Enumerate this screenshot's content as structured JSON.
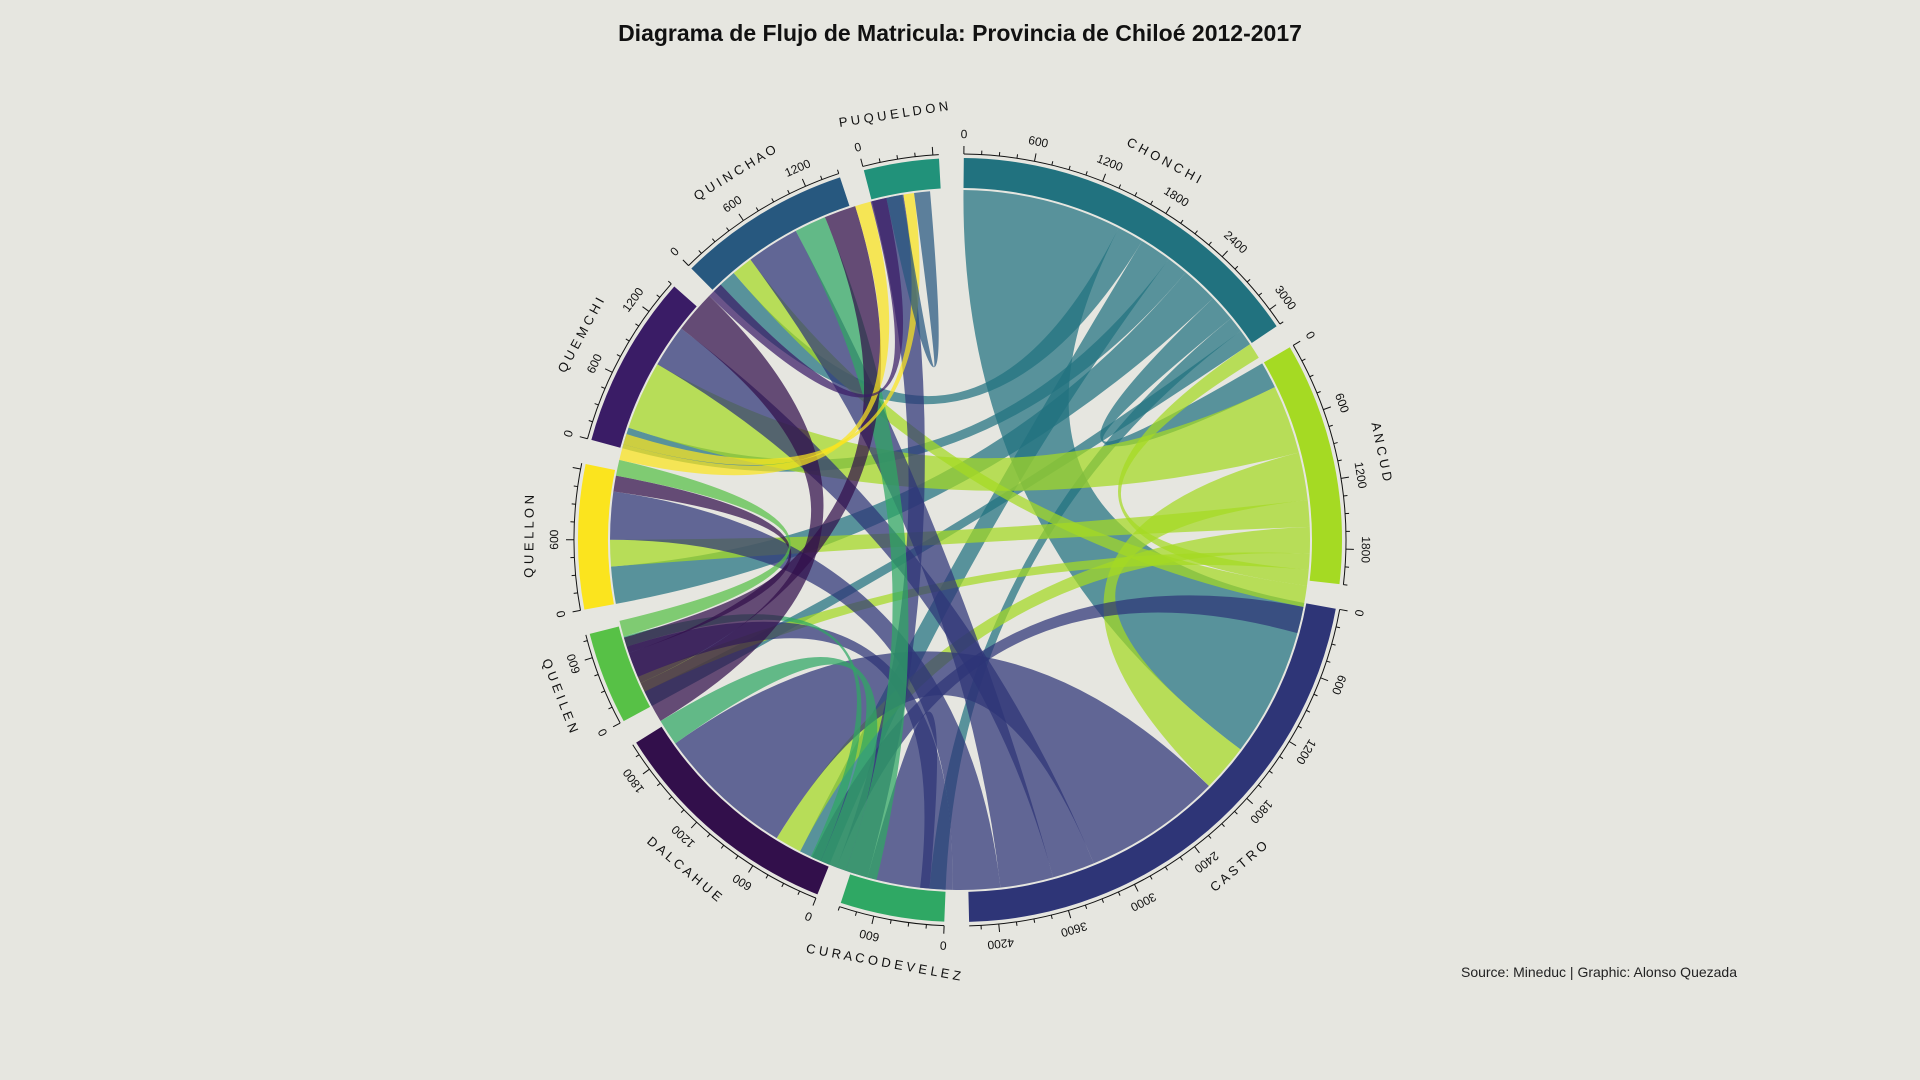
{
  "chart_data": {
    "type": "chord",
    "title": "Diagrama de Flujo de Matricula: Provincia de Chiloé 2012-2017",
    "caption": "Source: Mineduc | Graphic: Alonso Quezada",
    "sectors": [
      {
        "name": "CHONCHI",
        "label": "C H O N C H I",
        "total": 3150,
        "color": "#21727f",
        "ticks": [
          0,
          600,
          1200,
          1800,
          2400,
          3000
        ]
      },
      {
        "name": "ANCUD",
        "label": "A N C U D",
        "total": 2100,
        "color": "#a5da23",
        "ticks": [
          0,
          600,
          1200,
          1800
        ]
      },
      {
        "name": "CASTRO",
        "label": "C A S T R O",
        "total": 4450,
        "color": "#2e3577",
        "ticks": [
          0,
          600,
          1200,
          1800,
          2400,
          3000,
          3600,
          4200
        ]
      },
      {
        "name": "CURACO DE VELEZ",
        "label": "C U R A C O   D E   V E L E Z",
        "total": 900,
        "color": "#2fa864",
        "ticks": [
          0,
          600
        ]
      },
      {
        "name": "DALCAHUE",
        "label": "D A L C A H U E",
        "total": 2050,
        "color": "#320f4b",
        "ticks": [
          0,
          600,
          1200,
          1800
        ]
      },
      {
        "name": "QUEILEN",
        "label": "Q U E I L E N",
        "total": 800,
        "color": "#57c146",
        "ticks": [
          0,
          600
        ]
      },
      {
        "name": "QUELLON",
        "label": "Q U E L L O N",
        "total": 1250,
        "color": "#fbe41e",
        "ticks": [
          0,
          600
        ]
      },
      {
        "name": "QUEMCHI",
        "label": "Q U E M C H I",
        "total": 1500,
        "color": "#3a1c66",
        "ticks": [
          0,
          600,
          1200
        ]
      },
      {
        "name": "QUINCHAO",
        "label": "Q U I N C H A O",
        "total": 1500,
        "color": "#27587f",
        "ticks": [
          0,
          600,
          1200
        ]
      },
      {
        "name": "PUQUELDON",
        "label": "P U Q U E L D O N",
        "total": 650,
        "color": "#21927a",
        "ticks": [
          0
        ]
      }
    ],
    "flows": [
      {
        "from": "CHONCHI",
        "to": "CASTRO",
        "value": 1500
      },
      {
        "from": "CHONCHI",
        "to": "QUINCHAO",
        "value": 250
      },
      {
        "from": "CHONCHI",
        "to": "DALCAHUE",
        "value": 300
      },
      {
        "from": "CHONCHI",
        "to": "QUEMCHI",
        "value": 200
      },
      {
        "from": "CHONCHI",
        "to": "QUELLON",
        "value": 350
      },
      {
        "from": "CHONCHI",
        "to": "ANCUD",
        "value": 250
      },
      {
        "from": "CHONCHI",
        "to": "CURACO DE VELEZ",
        "value": 150
      },
      {
        "from": "CHONCHI",
        "to": "QUEILEN",
        "value": 150
      },
      {
        "from": "ANCUD",
        "to": "QUEMCHI",
        "value": 650
      },
      {
        "from": "ANCUD",
        "to": "CASTRO",
        "value": 450
      },
      {
        "from": "ANCUD",
        "to": "QUELLON",
        "value": 250
      },
      {
        "from": "ANCUD",
        "to": "DALCAHUE",
        "value": 250
      },
      {
        "from": "ANCUD",
        "to": "QUEILEN",
        "value": 150
      },
      {
        "from": "ANCUD",
        "to": "CHONCHI",
        "value": 150
      },
      {
        "from": "ANCUD",
        "to": "QUINCHAO",
        "value": 200
      },
      {
        "from": "CASTRO",
        "to": "DALCAHUE",
        "value": 1300
      },
      {
        "from": "CASTRO",
        "to": "QUEMCHI",
        "value": 400
      },
      {
        "from": "CASTRO",
        "to": "QUINCHAO",
        "value": 500
      },
      {
        "from": "CASTRO",
        "to": "QUELLON",
        "value": 450
      },
      {
        "from": "CASTRO",
        "to": "QUEILEN",
        "value": 300
      },
      {
        "from": "CASTRO",
        "to": "CURACO DE VELEZ",
        "value": 500
      },
      {
        "from": "CASTRO",
        "to": "PUQUELDON",
        "value": 300
      },
      {
        "from": "CASTRO",
        "to": "ANCUD",
        "value": 250
      },
      {
        "from": "CURACO DE VELEZ",
        "to": "QUINCHAO",
        "value": 300
      },
      {
        "from": "CURACO DE VELEZ",
        "to": "DALCAHUE",
        "value": 250
      },
      {
        "from": "CURACO DE VELEZ",
        "to": "QUEILEN",
        "value": 100
      },
      {
        "from": "DALCAHUE",
        "to": "QUEMCHI",
        "value": 400
      },
      {
        "from": "DALCAHUE",
        "to": "QUINCHAO",
        "value": 300
      },
      {
        "from": "DALCAHUE",
        "to": "QUELLON",
        "value": 150
      },
      {
        "from": "QUEILEN",
        "to": "QUELLON",
        "value": 150
      },
      {
        "from": "QUELLON",
        "to": "QUINCHAO",
        "value": 150
      },
      {
        "from": "QUELLON",
        "to": "PUQUELDON",
        "value": 100
      },
      {
        "from": "QUEMCHI",
        "to": "QUINCHAO",
        "value": 150
      },
      {
        "from": "QUINCHAO",
        "to": "PUQUELDON",
        "value": 150
      }
    ]
  }
}
